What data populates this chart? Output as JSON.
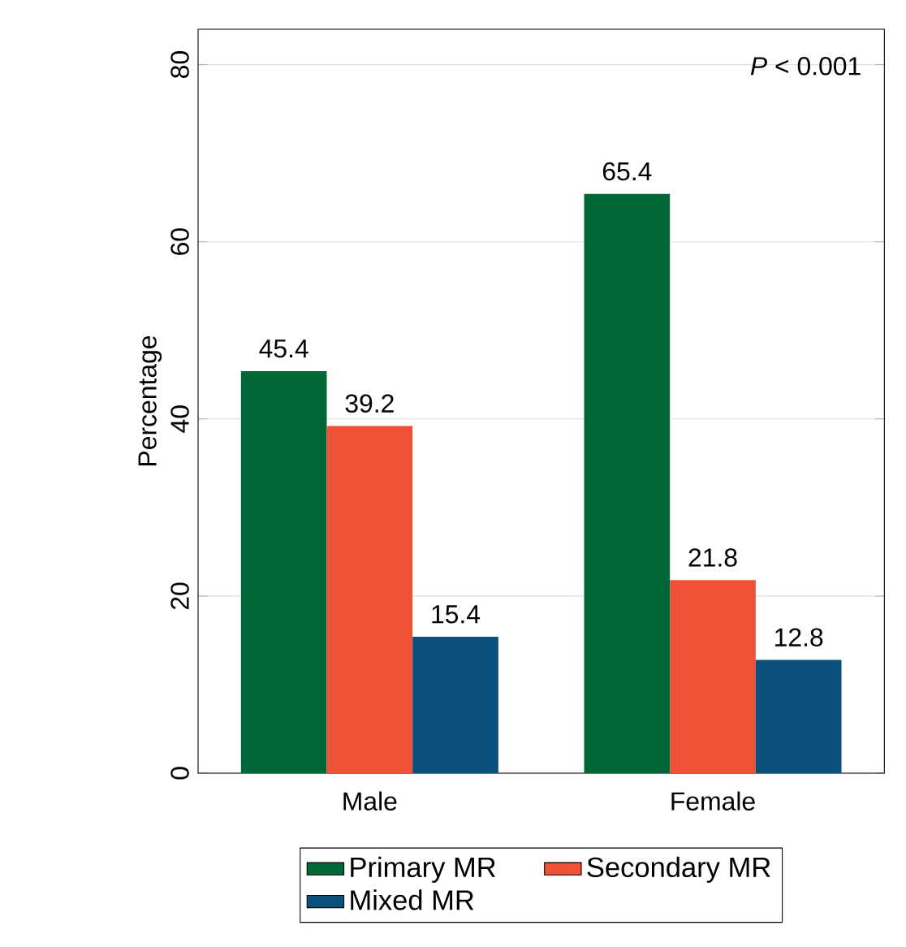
{
  "chart_data": {
    "type": "bar",
    "ylabel": "Percentage",
    "categories": [
      "Male",
      "Female"
    ],
    "series": [
      {
        "name": "Primary MR",
        "color": "#006837",
        "values": [
          45.4,
          65.4
        ]
      },
      {
        "name": "Secondary MR",
        "color": "#ef5136",
        "values": [
          39.2,
          21.8
        ]
      },
      {
        "name": "Mixed MR",
        "color": "#0b4f7c",
        "values": [
          15.4,
          12.8
        ]
      }
    ],
    "ylim": [
      0,
      84
    ],
    "yticks": [
      0,
      20,
      40,
      60,
      80
    ],
    "grid": "y",
    "legend": "bottom",
    "data_labels": true,
    "annotations": [
      "*P* < 0.001"
    ]
  }
}
